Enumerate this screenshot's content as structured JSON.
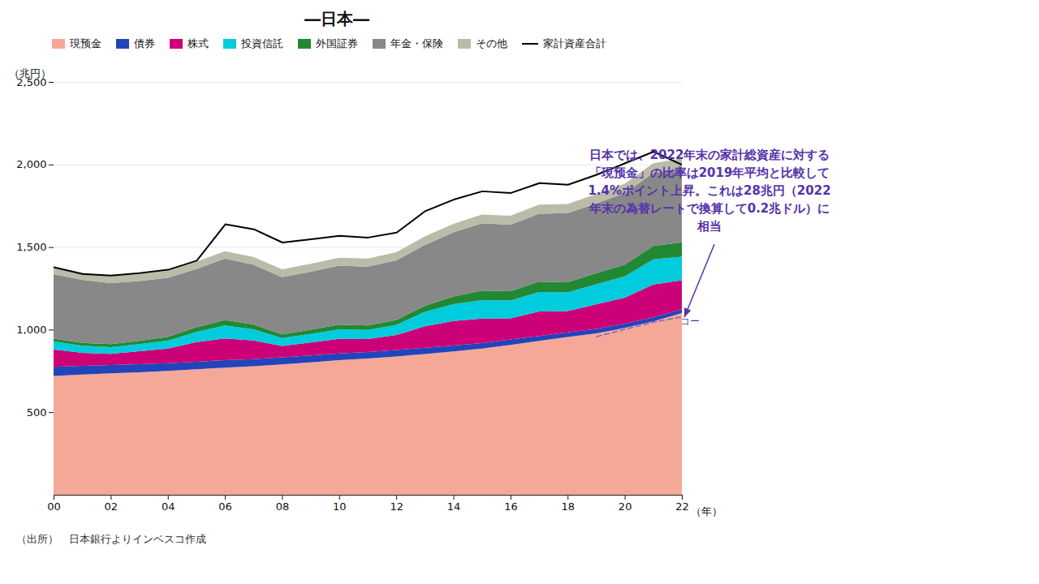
{
  "chart_data": {
    "type": "area",
    "stacked": true,
    "title": "―日本―",
    "ylabel": "（兆円）",
    "xlabel": "（年）",
    "source": "（出所）　日本銀行よりインベスコ作成",
    "x": [
      2000,
      2001,
      2002,
      2003,
      2004,
      2005,
      2006,
      2007,
      2008,
      2009,
      2010,
      2011,
      2012,
      2013,
      2014,
      2015,
      2016,
      2017,
      2018,
      2019,
      2020,
      2021,
      2022
    ],
    "xlim": [
      2000,
      2022
    ],
    "xticks": [
      {
        "value": 2000,
        "label": "00"
      },
      {
        "value": 2002,
        "label": "02"
      },
      {
        "value": 2004,
        "label": "04"
      },
      {
        "value": 2006,
        "label": "06"
      },
      {
        "value": 2008,
        "label": "08"
      },
      {
        "value": 2010,
        "label": "10"
      },
      {
        "value": 2012,
        "label": "12"
      },
      {
        "value": 2014,
        "label": "14"
      },
      {
        "value": 2016,
        "label": "16"
      },
      {
        "value": 2018,
        "label": "18"
      },
      {
        "value": 2020,
        "label": "20"
      },
      {
        "value": 2022,
        "label": "22"
      }
    ],
    "ylim": [
      0,
      2500
    ],
    "yticks": [
      500,
      {
        "value": 1000,
        "label": "1,000"
      },
      {
        "value": 1500,
        "label": "1,500"
      },
      {
        "value": 2000,
        "label": "2,000"
      },
      {
        "value": 2500,
        "label": "2,500"
      }
    ],
    "grid": true,
    "series": [
      {
        "name": "現预金",
        "color": "#F5A898",
        "values": [
          720,
          728,
          735,
          742,
          750,
          760,
          770,
          778,
          790,
          802,
          815,
          825,
          838,
          852,
          868,
          885,
          908,
          932,
          955,
          978,
          1010,
          1050,
          1100
        ]
      },
      {
        "name": "債券",
        "color": "#2244BB",
        "values": [
          55,
          53,
          51,
          49,
          47,
          46,
          45,
          44,
          43,
          42,
          41,
          40,
          39,
          38,
          36,
          34,
          32,
          30,
          28,
          27,
          26,
          25,
          24
        ]
      },
      {
        "name": "株式",
        "color": "#CC0077",
        "values": [
          105,
          78,
          68,
          78,
          88,
          118,
          132,
          112,
          68,
          78,
          88,
          78,
          90,
          130,
          148,
          148,
          128,
          148,
          130,
          148,
          158,
          198,
          175
        ]
      },
      {
        "name": "投資信託",
        "color": "#00CCDD",
        "values": [
          48,
          43,
          40,
          43,
          48,
          62,
          78,
          68,
          48,
          52,
          58,
          55,
          62,
          88,
          102,
          112,
          108,
          118,
          112,
          122,
          128,
          152,
          142
        ]
      },
      {
        "name": "外国証券",
        "color": "#228833",
        "values": [
          18,
          18,
          18,
          20,
          23,
          28,
          33,
          30,
          22,
          25,
          28,
          27,
          30,
          37,
          47,
          57,
          57,
          62,
          62,
          67,
          72,
          82,
          88
        ]
      },
      {
        "name": "年金・保険",
        "color": "#888888",
        "values": [
          390,
          382,
          370,
          362,
          358,
          353,
          372,
          362,
          347,
          352,
          357,
          357,
          360,
          368,
          388,
          408,
          402,
          412,
          418,
          422,
          432,
          442,
          448
        ]
      },
      {
        "name": "その他",
        "color": "#BBBBAA",
        "values": [
          42,
          42,
          42,
          42,
          43,
          44,
          45,
          46,
          47,
          48,
          49,
          49,
          50,
          51,
          52,
          53,
          54,
          55,
          56,
          57,
          58,
          59,
          60
        ]
      },
      {
        "name": "家計資産合計",
        "type": "line",
        "color": "#000000",
        "values": [
          1380,
          1340,
          1330,
          1345,
          1365,
          1420,
          1640,
          1610,
          1530,
          1550,
          1570,
          1560,
          1590,
          1720,
          1790,
          1840,
          1830,
          1890,
          1880,
          1940,
          2010,
          2080,
          2000
        ]
      },
      {
        "type": "line",
        "line_style": "dashed",
        "color": "#8866BB",
        "values": [
          null,
          null,
          null,
          null,
          null,
          null,
          null,
          null,
          null,
          null,
          null,
          null,
          null,
          null,
          null,
          null,
          null,
          null,
          null,
          960,
          1005,
          1048,
          1080
        ]
      }
    ],
    "annotations": [
      {
        "text": "日本では、2022年末の家計総資産に対する\n「現预金」の比率は2019年平均と比較して\n1.4%ポイント上昇。これは28兆円（2022\n年末の為替レートで換算して0.2兆ドル）に\n相当",
        "color": "#5533aa",
        "x": 2022,
        "y": 1050
      },
      {
        "text": "コー",
        "color": "#5533aa",
        "x": 2022,
        "y": 1050
      }
    ]
  }
}
